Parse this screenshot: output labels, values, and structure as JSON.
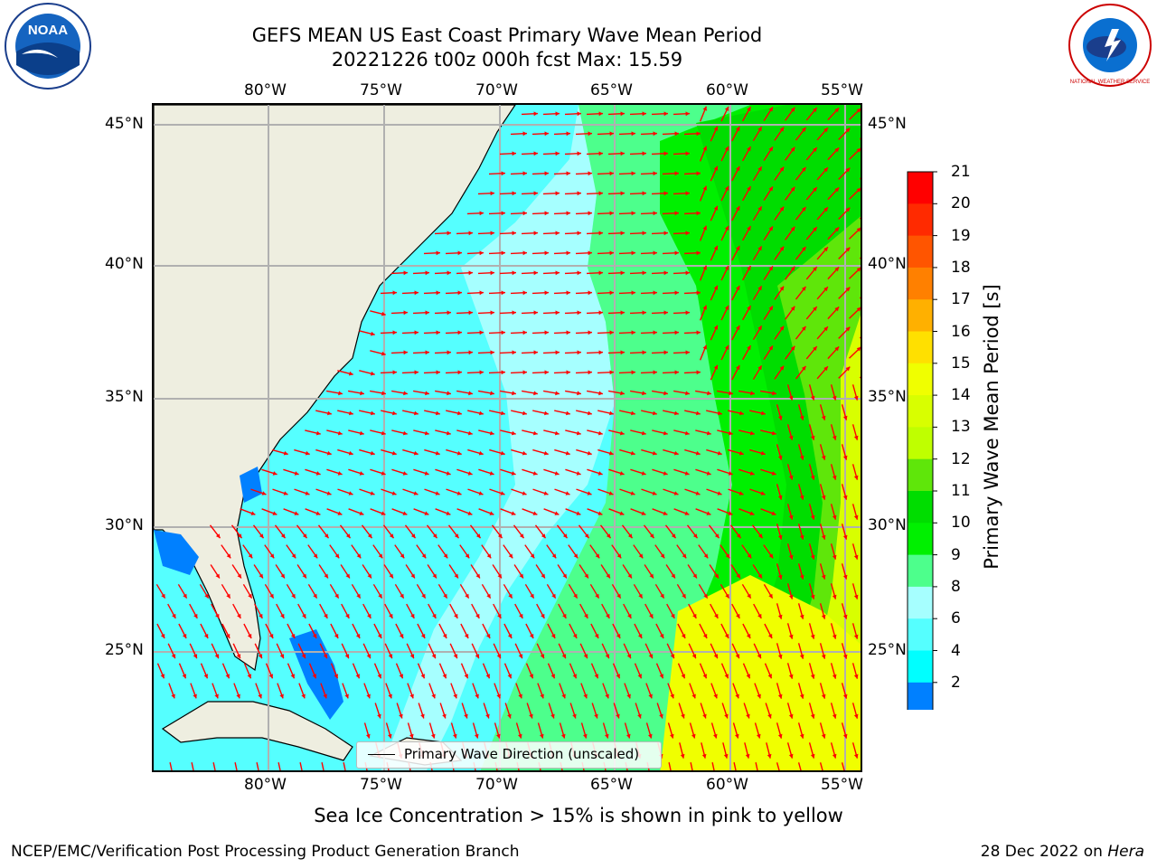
{
  "title": {
    "line1": "GEFS MEAN US East Coast Primary Wave Mean Period",
    "line2": "20221226 t00z 000h fcst   Max: 15.59"
  },
  "axes": {
    "lon_labels": [
      "80°W",
      "75°W",
      "70°W",
      "65°W",
      "60°W",
      "55°W"
    ],
    "lat_labels": [
      "45°N",
      "40°N",
      "35°N",
      "30°N",
      "25°N"
    ]
  },
  "legend": {
    "label": "Primary Wave Direction (unscaled)"
  },
  "colorbar": {
    "title": "Primary Wave Mean Period [s]",
    "ticks": [
      "21",
      "20",
      "19",
      "18",
      "17",
      "16",
      "15",
      "14",
      "13",
      "12",
      "11",
      "10",
      "9",
      "8",
      "6",
      "4",
      "2"
    ],
    "colors": [
      "#ff0000",
      "#ff2a00",
      "#ff5500",
      "#ff8000",
      "#ffb000",
      "#ffe000",
      "#f0ff00",
      "#d8ff00",
      "#bfff00",
      "#5fe60a",
      "#00dd00",
      "#00f000",
      "#4dff8c",
      "#a6ffff",
      "#55ffff",
      "#00ffff",
      "#0080ff"
    ],
    "extend_color": "#0000ff"
  },
  "map": {
    "land_color": "#eeeee0",
    "arrow_color": "#ff0000"
  },
  "caption": "Sea Ice Concentration > 15% is shown in pink to yellow",
  "footer": {
    "left": "NCEP/EMC/Verification Post Processing Product Generation Branch",
    "right_prefix": "28 Dec 2022 on ",
    "right_italic": "Hera"
  },
  "logos": {
    "noaa_text": "NOAA",
    "nws_text": "NATIONAL WEATHER SERVICE"
  }
}
